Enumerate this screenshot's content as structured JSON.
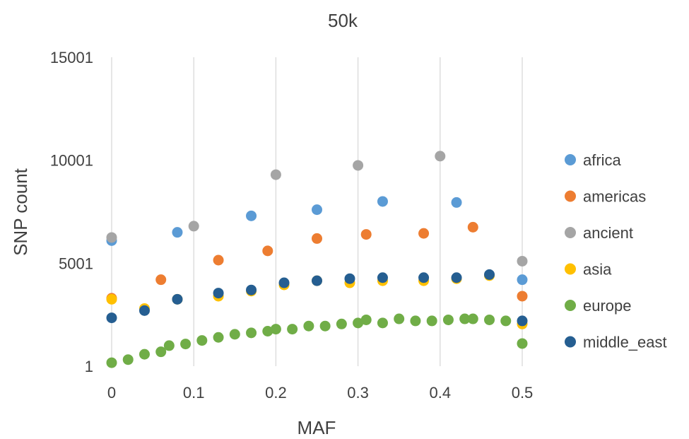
{
  "chart_data": {
    "type": "scatter",
    "title": "50k",
    "xlabel": "MAF",
    "ylabel": "SNP count",
    "xlim": [
      0,
      0.5
    ],
    "ylim": [
      1,
      15001
    ],
    "x_ticks": [
      "0",
      "0.1",
      "0.2",
      "0.3",
      "0.4",
      "0.5"
    ],
    "y_ticks": [
      "1",
      "5001",
      "10001",
      "15001"
    ],
    "x_tick_values": [
      0,
      0.1,
      0.2,
      0.3,
      0.4,
      0.5
    ],
    "y_tick_values": [
      1,
      5001,
      10001,
      15001
    ],
    "grid": "vertical",
    "legend_position": "right",
    "series": [
      {
        "name": "africa",
        "color": "#5b9bd5",
        "points": [
          [
            0,
            6100
          ],
          [
            0.08,
            6500
          ],
          [
            0.17,
            7300
          ],
          [
            0.25,
            7600
          ],
          [
            0.33,
            8000
          ],
          [
            0.42,
            7950
          ],
          [
            0.5,
            4200
          ]
        ]
      },
      {
        "name": "americas",
        "color": "#ed7d31",
        "points": [
          [
            0,
            3300
          ],
          [
            0.06,
            4200
          ],
          [
            0.13,
            5150
          ],
          [
            0.19,
            5600
          ],
          [
            0.25,
            6200
          ],
          [
            0.31,
            6400
          ],
          [
            0.38,
            6450
          ],
          [
            0.44,
            6750
          ],
          [
            0.5,
            3400
          ]
        ]
      },
      {
        "name": "ancient",
        "color": "#a5a5a5",
        "points": [
          [
            0,
            6250
          ],
          [
            0.1,
            6800
          ],
          [
            0.2,
            9300
          ],
          [
            0.3,
            9750
          ],
          [
            0.4,
            10200
          ],
          [
            0.5,
            5100
          ]
        ]
      },
      {
        "name": "asia",
        "color": "#ffc000",
        "points": [
          [
            0,
            3250
          ],
          [
            0.04,
            2800
          ],
          [
            0.08,
            3250
          ],
          [
            0.13,
            3400
          ],
          [
            0.17,
            3650
          ],
          [
            0.21,
            3950
          ],
          [
            0.25,
            4150
          ],
          [
            0.29,
            4050
          ],
          [
            0.33,
            4150
          ],
          [
            0.38,
            4150
          ],
          [
            0.42,
            4250
          ],
          [
            0.46,
            4400
          ],
          [
            0.5,
            2050
          ]
        ]
      },
      {
        "name": "europe",
        "color": "#70ad47",
        "points": [
          [
            0,
            170
          ],
          [
            0.02,
            320
          ],
          [
            0.04,
            580
          ],
          [
            0.06,
            700
          ],
          [
            0.07,
            1000
          ],
          [
            0.09,
            1080
          ],
          [
            0.11,
            1250
          ],
          [
            0.13,
            1400
          ],
          [
            0.15,
            1550
          ],
          [
            0.17,
            1620
          ],
          [
            0.19,
            1700
          ],
          [
            0.2,
            1800
          ],
          [
            0.22,
            1800
          ],
          [
            0.24,
            1950
          ],
          [
            0.26,
            1950
          ],
          [
            0.28,
            2050
          ],
          [
            0.3,
            2100
          ],
          [
            0.31,
            2250
          ],
          [
            0.33,
            2100
          ],
          [
            0.35,
            2300
          ],
          [
            0.37,
            2200
          ],
          [
            0.39,
            2200
          ],
          [
            0.41,
            2250
          ],
          [
            0.43,
            2300
          ],
          [
            0.44,
            2300
          ],
          [
            0.46,
            2250
          ],
          [
            0.48,
            2200
          ],
          [
            0.5,
            1100
          ]
        ]
      },
      {
        "name": "middle_east",
        "color": "#255e91",
        "points": [
          [
            0,
            2350
          ],
          [
            0.04,
            2700
          ],
          [
            0.08,
            3250
          ],
          [
            0.13,
            3550
          ],
          [
            0.17,
            3700
          ],
          [
            0.21,
            4050
          ],
          [
            0.25,
            4150
          ],
          [
            0.29,
            4250
          ],
          [
            0.33,
            4300
          ],
          [
            0.38,
            4300
          ],
          [
            0.42,
            4300
          ],
          [
            0.46,
            4450
          ],
          [
            0.5,
            2200
          ]
        ]
      }
    ]
  }
}
